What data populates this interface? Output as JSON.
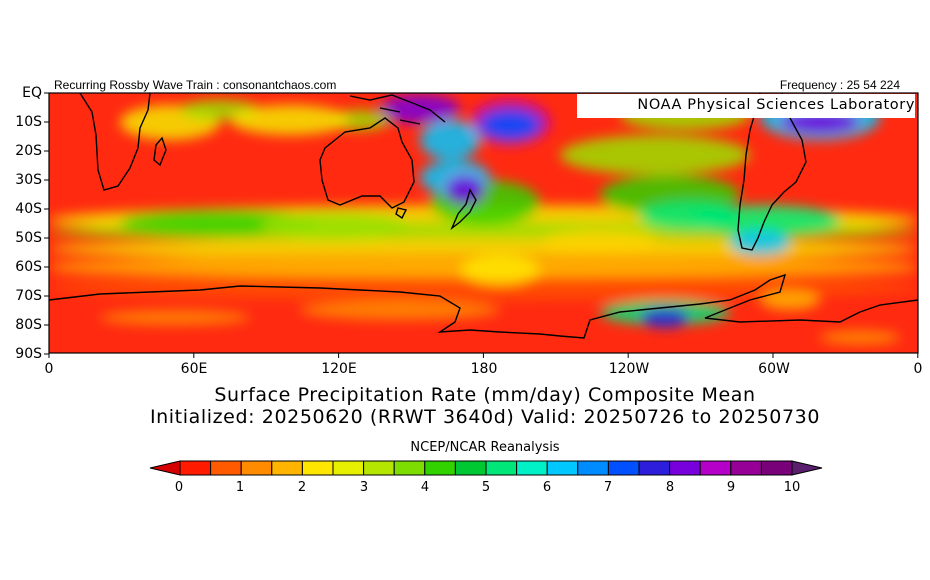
{
  "header": {
    "left": "Recurring Rossby Wave Train : consonantchaos.com",
    "right": "Frequency : 25 54 224"
  },
  "credit": "NOAA Physical Sciences Laboratory",
  "map": {
    "lat_labels": [
      "EQ",
      "10S",
      "20S",
      "30S",
      "40S",
      "50S",
      "60S",
      "70S",
      "80S",
      "90S"
    ],
    "lon_labels": [
      "0",
      "60E",
      "120E",
      "180",
      "120W",
      "60W",
      "0"
    ],
    "field": "precipitation rate composite",
    "colors": {
      "dry": "#ff2a10",
      "wet": "#7a1e9a"
    }
  },
  "titles": {
    "line1": "Surface Precipitation Rate (mm/day) Composite Mean",
    "line2": "Initialized: 20250620 (RRWT 3640d) Valid: 20250726 to 20250730"
  },
  "source": "NCEP/NCAR Reanalysis",
  "colorbar": {
    "ticks": [
      "0",
      "1",
      "2",
      "3",
      "4",
      "5",
      "6",
      "7",
      "8",
      "9",
      "10"
    ],
    "colors": [
      "#d50000",
      "#ff1a00",
      "#ff5a00",
      "#ff8c00",
      "#ffb400",
      "#ffe600",
      "#e6f000",
      "#b4e600",
      "#7ddc00",
      "#32d200",
      "#00c832",
      "#00e678",
      "#00f0c8",
      "#00c8ff",
      "#008cff",
      "#0050ff",
      "#2d1edc",
      "#7800dc",
      "#b400c8",
      "#960096",
      "#780078",
      "#5a1e6e"
    ]
  }
}
